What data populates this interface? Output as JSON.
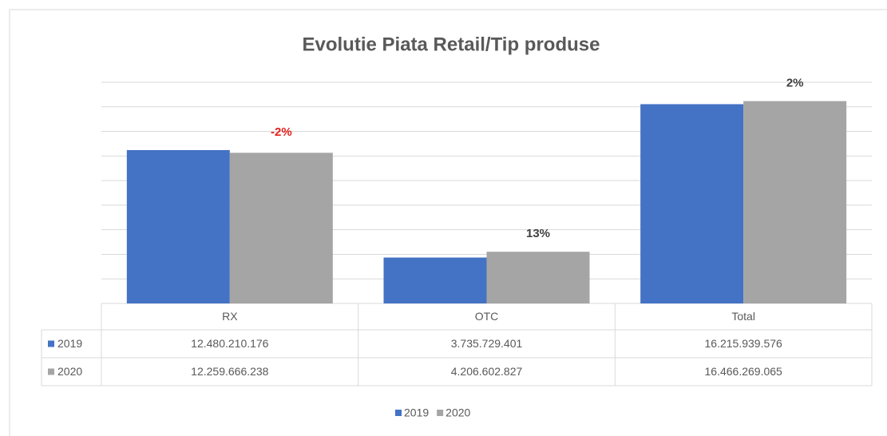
{
  "chart_data": {
    "type": "bar",
    "title": "Evolutie Piata Retail/Tip produse",
    "categories": [
      "RX",
      "OTC",
      "Total"
    ],
    "series": [
      {
        "name": "2019",
        "color": "#4472c4",
        "values": [
          12480210176,
          3735729401,
          16215939576
        ],
        "value_labels": [
          "12.480.210.176",
          "3.735.729.401",
          "16.215.939.576"
        ]
      },
      {
        "name": "2020",
        "color": "#a5a5a5",
        "values": [
          12259666238,
          4206602827,
          16466269065
        ],
        "value_labels": [
          "12.259.666.238",
          "4.206.602.827",
          "16.466.269.065"
        ]
      }
    ],
    "annotations": [
      {
        "text": "-2%",
        "color": "#e0201c"
      },
      {
        "text": "13%",
        "color": "#404040"
      },
      {
        "text": "2%",
        "color": "#404040"
      }
    ],
    "ylim": [
      0,
      18000000000
    ],
    "yticks": [
      0,
      2000000000,
      4000000000,
      6000000000,
      8000000000,
      10000000000,
      12000000000,
      14000000000,
      16000000000,
      18000000000
    ],
    "grid": true
  }
}
